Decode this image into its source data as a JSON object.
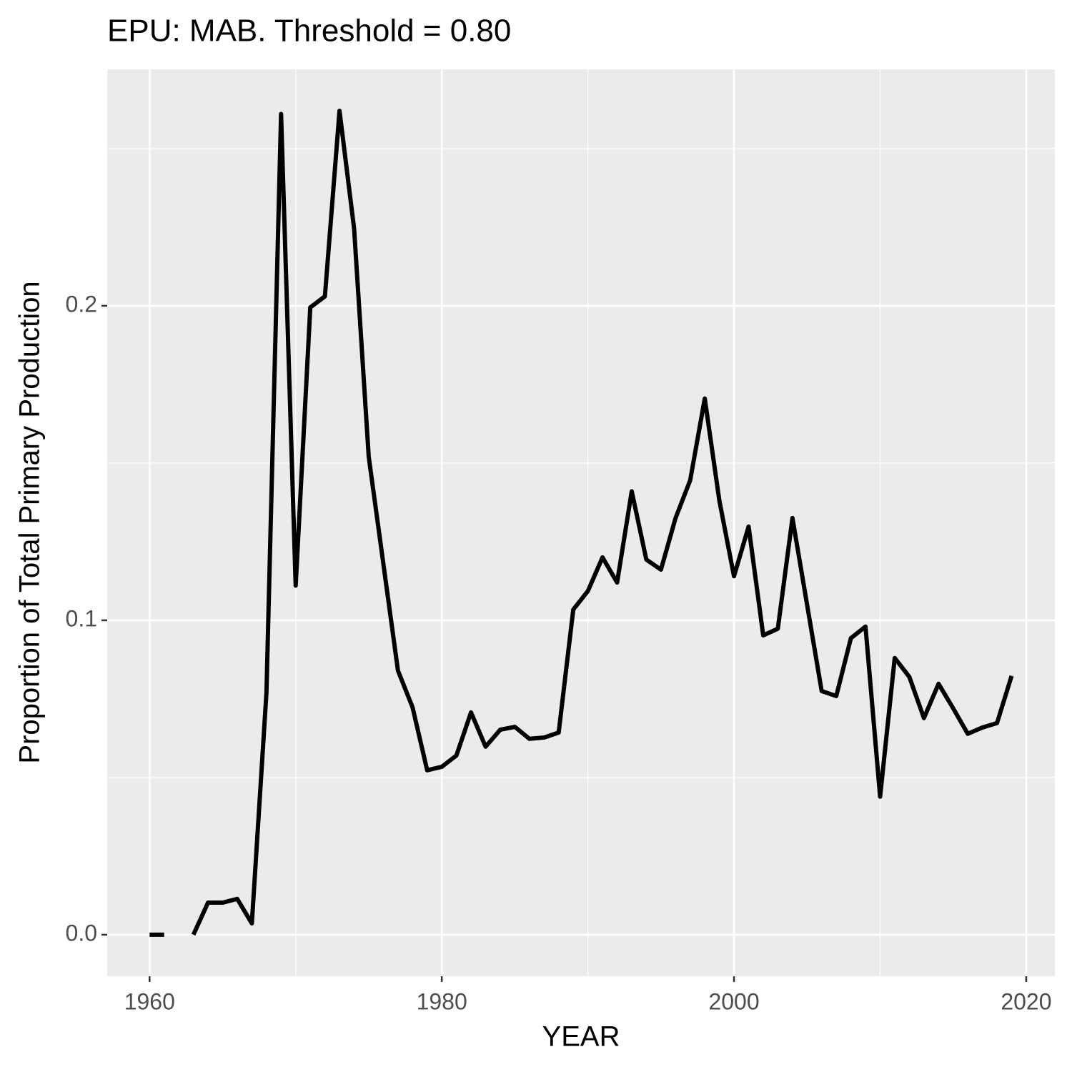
{
  "chart_data": {
    "type": "line",
    "title": "EPU: MAB. Threshold = 0.80",
    "x_label": "YEAR",
    "y_label": "Proportion of Total Primary Production",
    "x": [
      1960,
      1961,
      1962,
      1963,
      1964,
      1965,
      1966,
      1967,
      1968,
      1969,
      1970,
      1971,
      1972,
      1973,
      1974,
      1975,
      1976,
      1977,
      1978,
      1979,
      1980,
      1981,
      1982,
      1983,
      1984,
      1985,
      1986,
      1987,
      1988,
      1989,
      1990,
      1991,
      1992,
      1993,
      1994,
      1995,
      1996,
      1997,
      1998,
      1999,
      2000,
      2001,
      2002,
      2003,
      2004,
      2005,
      2006,
      2007,
      2008,
      2009,
      2010,
      2011,
      2012,
      2013,
      2014,
      2015,
      2016,
      2017,
      2018,
      2019
    ],
    "series": [
      {
        "color": "#000000",
        "values": [
          0,
          0,
          null,
          0,
          0.0102,
          0.0102,
          0.0114,
          0.0036,
          0.077,
          0.261,
          0.111,
          0.1995,
          0.203,
          0.262,
          0.2245,
          0.152,
          0.118,
          0.084,
          0.0723,
          0.0523,
          0.0534,
          0.057,
          0.0707,
          0.0598,
          0.0652,
          0.0661,
          0.0623,
          0.0627,
          0.0643,
          0.1034,
          0.1093,
          0.12,
          0.112,
          0.141,
          0.1193,
          0.1161,
          0.1325,
          0.1445,
          0.1705,
          0.138,
          0.114,
          0.1298,
          0.0952,
          0.0973,
          0.1325,
          0.105,
          0.0775,
          0.0759,
          0.0943,
          0.098,
          0.0439,
          0.088,
          0.082,
          0.0689,
          0.0798,
          0.072,
          0.0639,
          0.0659,
          0.0673,
          0.0823
        ]
      }
    ],
    "xlim": [
      1957.1,
      2021.96
    ],
    "ylim": [
      -0.0132,
      0.2752
    ],
    "xticks": [
      1960,
      1980,
      2000,
      2020
    ],
    "yticks": [
      {
        "value": 0,
        "label": "0.0"
      },
      0.1,
      0.2
    ],
    "minor_xticks": [
      1970,
      1990,
      2010
    ],
    "minor_yticks": [
      0.05,
      0.15,
      0.25
    ],
    "grid": true
  }
}
